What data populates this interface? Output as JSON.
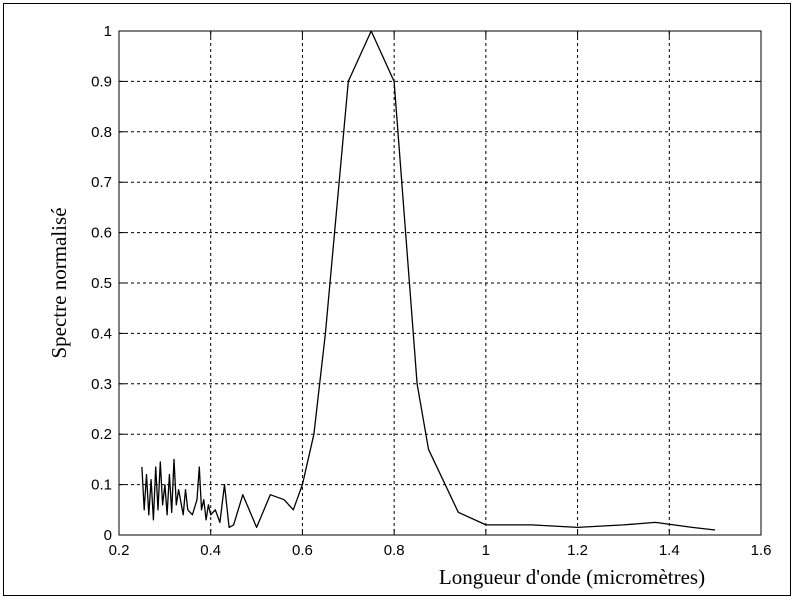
{
  "chart_data": {
    "type": "line",
    "title": "",
    "xlabel": "Longueur d'onde (micromètres)",
    "ylabel": "Spectre normalisé",
    "xlim": [
      0.2,
      1.6
    ],
    "ylim": [
      0,
      1
    ],
    "x_ticks": [
      "0.2",
      "0.4",
      "0.6",
      "0.8",
      "1",
      "1.2",
      "1.4",
      "1.6"
    ],
    "y_ticks": [
      "0",
      "0.1",
      "0.2",
      "0.3",
      "0.4",
      "0.5",
      "0.6",
      "0.7",
      "0.8",
      "0.9",
      "1"
    ],
    "grid": true,
    "line_color": "#000000",
    "series": [
      {
        "x": [
          0.25,
          0.255,
          0.26,
          0.265,
          0.27,
          0.275,
          0.28,
          0.285,
          0.29,
          0.295,
          0.3,
          0.305,
          0.31,
          0.315,
          0.32,
          0.325,
          0.33,
          0.34,
          0.345,
          0.35,
          0.36,
          0.37,
          0.375,
          0.38,
          0.385,
          0.39,
          0.395,
          0.4,
          0.41,
          0.42,
          0.43,
          0.44,
          0.45,
          0.47,
          0.5,
          0.53,
          0.56,
          0.58,
          0.6,
          0.625,
          0.65,
          0.7,
          0.75,
          0.8,
          0.85,
          0.875,
          0.94,
          1.0,
          1.1,
          1.2,
          1.3,
          1.37,
          1.45,
          1.5
        ],
        "y": [
          0.135,
          0.05,
          0.12,
          0.04,
          0.11,
          0.03,
          0.135,
          0.05,
          0.145,
          0.06,
          0.1,
          0.04,
          0.12,
          0.045,
          0.15,
          0.06,
          0.09,
          0.04,
          0.09,
          0.05,
          0.04,
          0.07,
          0.135,
          0.05,
          0.07,
          0.03,
          0.06,
          0.04,
          0.05,
          0.025,
          0.1,
          0.015,
          0.02,
          0.08,
          0.015,
          0.08,
          0.07,
          0.05,
          0.1,
          0.2,
          0.4,
          0.9,
          1.0,
          0.9,
          0.3,
          0.17,
          0.045,
          0.02,
          0.02,
          0.015,
          0.02,
          0.025,
          0.015,
          0.01
        ]
      }
    ]
  }
}
